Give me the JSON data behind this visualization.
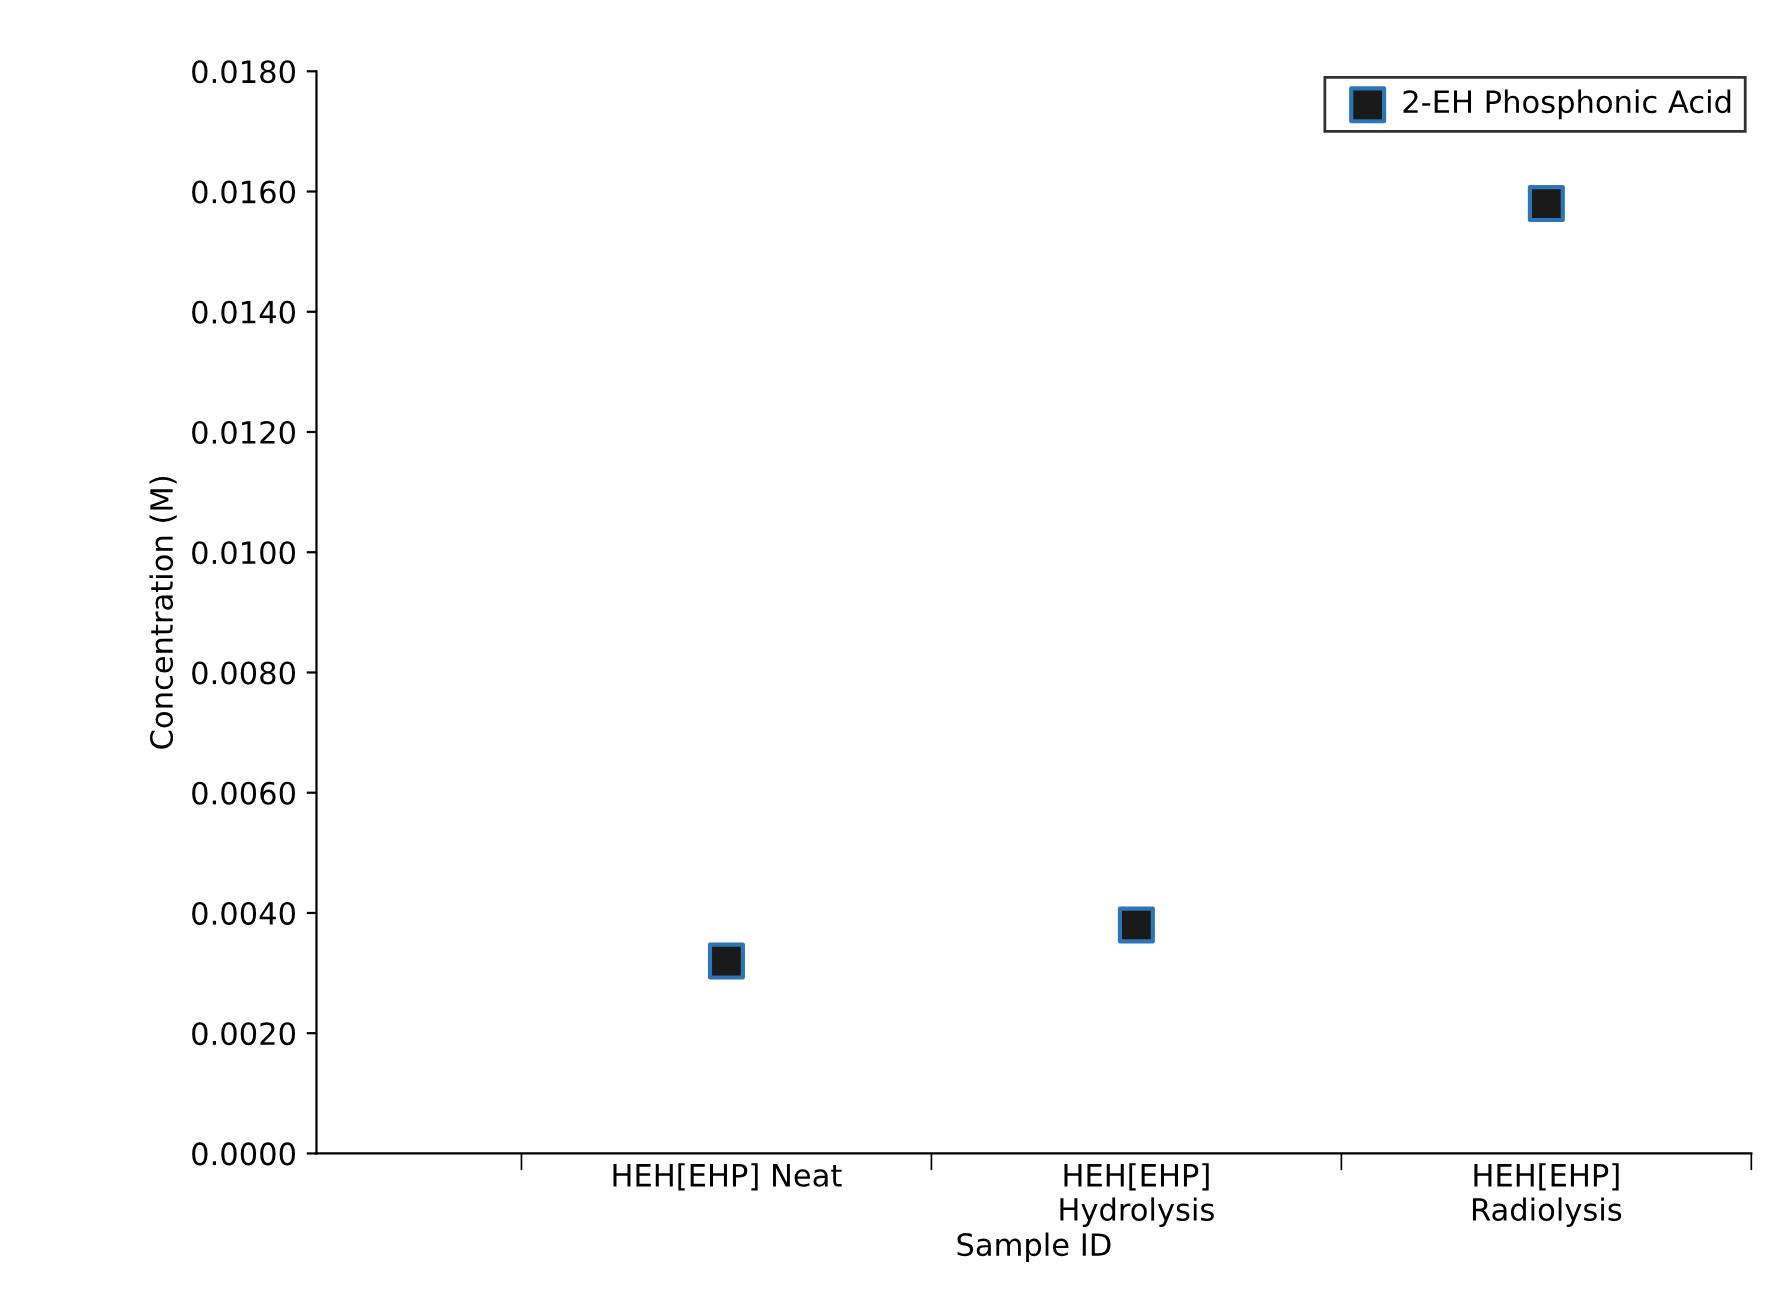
{
  "chart_data": {
    "type": "scatter",
    "xlabel": "Sample ID",
    "ylabel": "Concentration (M)",
    "categories": [
      "HEH[EHP] Neat",
      "HEH[EHP]\nHydrolysis",
      "HEH[EHP]\nRadiolysis"
    ],
    "series": [
      {
        "name": "2-EH Phosphonic Acid",
        "color": "#1a1a1a",
        "values": [
          0.0032,
          0.0038,
          0.0158
        ]
      }
    ],
    "marker": "square",
    "ylim": [
      0,
      0.018
    ],
    "yticks": [
      {
        "value": 0,
        "label": "0.0000"
      },
      {
        "value": 0.002,
        "label": "0.0020"
      },
      {
        "value": 0.004,
        "label": "0.0040"
      },
      {
        "value": 0.006,
        "label": "0.0060"
      },
      {
        "value": 0.008,
        "label": "0.0080"
      },
      {
        "value": 0.01,
        "label": "0.0100"
      },
      {
        "value": 0.012,
        "label": "0.0120"
      },
      {
        "value": 0.014,
        "label": "0.0140"
      },
      {
        "value": 0.016,
        "label": "0.0160"
      },
      {
        "value": 0.018,
        "label": "0.0180"
      }
    ],
    "grid": false,
    "legend": "top right"
  }
}
